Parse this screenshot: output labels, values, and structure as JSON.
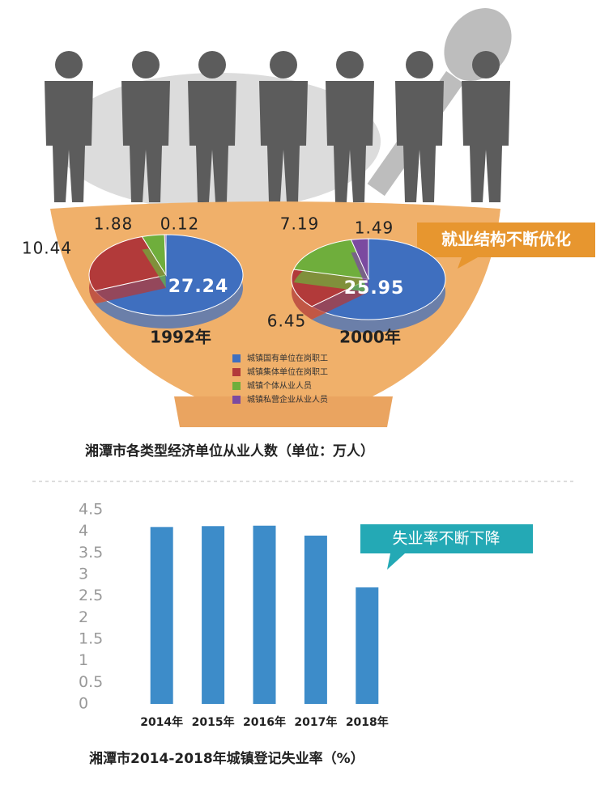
{
  "chart_data": [
    {
      "type": "pie",
      "title": "湘潭市各类型经济单位从业人数（单位：万人）",
      "annotation": "就业结构不断优化",
      "categories": [
        "城镇国有单位在岗职工",
        "城镇集体单位在岗职工",
        "城镇个体从业人员",
        "城镇私营企业从业人员"
      ],
      "colors": [
        "#3f6fbf",
        "#b23a3a",
        "#6fae3c",
        "#7b4aa0"
      ],
      "series": [
        {
          "name": "1992年",
          "values": [
            27.24,
            10.44,
            1.88,
            0.12
          ]
        },
        {
          "name": "2000年",
          "values": [
            25.95,
            6.45,
            7.19,
            1.49
          ]
        }
      ]
    },
    {
      "type": "bar",
      "title": "湘潭市2014-2018年城镇登记失业率（%）",
      "annotation": "失业率不断下降",
      "categories": [
        "2014年",
        "2015年",
        "2016年",
        "2017年",
        "2018年"
      ],
      "values": [
        4.1,
        4.12,
        4.13,
        3.9,
        2.7
      ],
      "color": "#3d8cc9",
      "ylim": [
        0,
        4.5
      ],
      "yticks": [
        0,
        0.5,
        1,
        1.5,
        2,
        2.5,
        3,
        3.5,
        4,
        4.5
      ]
    }
  ]
}
